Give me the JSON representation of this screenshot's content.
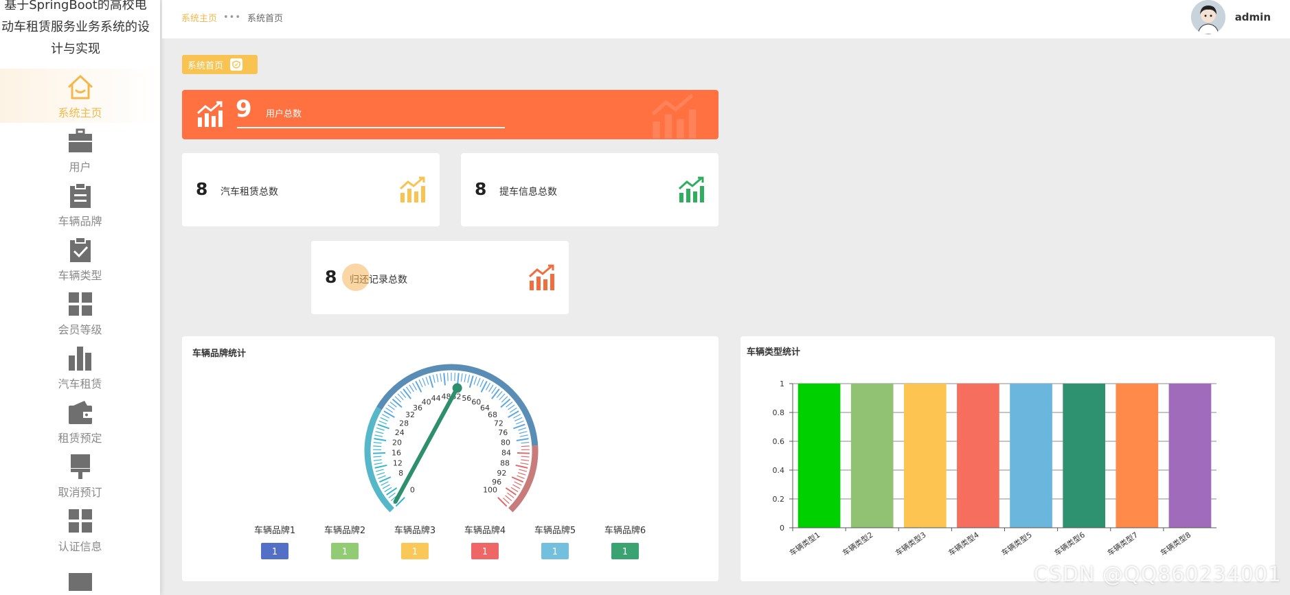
{
  "app": {
    "title": "基于SpringBoot的高校电动车租赁服务业务系统的设计与实现"
  },
  "sidebar": {
    "items": [
      {
        "label": "系统主页",
        "icon": "home-icon",
        "active": true
      },
      {
        "label": "用户",
        "icon": "briefcase-icon"
      },
      {
        "label": "车辆品牌",
        "icon": "clipboard-icon"
      },
      {
        "label": "车辆类型",
        "icon": "clipboard-check-icon"
      },
      {
        "label": "会员等级",
        "icon": "grid-icon"
      },
      {
        "label": "汽车租赁",
        "icon": "bar-chart-icon"
      },
      {
        "label": "租赁预定",
        "icon": "wallet-icon"
      },
      {
        "label": "取消预订",
        "icon": "brush-icon"
      },
      {
        "label": "认证信息",
        "icon": "grid-icon"
      }
    ]
  },
  "breadcrumb": {
    "home": "系统主页",
    "separator": "•••",
    "current": "系统首页"
  },
  "header": {
    "username": "admin"
  },
  "page_tag": {
    "label": "系统首页"
  },
  "stats": {
    "users": {
      "value": "9",
      "label": "用户总数"
    },
    "car_rental": {
      "value": "8",
      "label": "汽车租赁总数"
    },
    "pickup": {
      "value": "8",
      "label": "提车信息总数"
    },
    "return": {
      "value": "8",
      "label": "归还记录总数"
    }
  },
  "gauge_panel": {
    "title": "车辆品牌统计",
    "legend": [
      {
        "name": "车辆品牌1",
        "value": "1",
        "color": "#5470c6"
      },
      {
        "name": "车辆品牌2",
        "value": "1",
        "color": "#91cc75"
      },
      {
        "name": "车辆品牌3",
        "value": "1",
        "color": "#fac858"
      },
      {
        "name": "车辆品牌4",
        "value": "1",
        "color": "#ee6666"
      },
      {
        "name": "车辆品牌5",
        "value": "1",
        "color": "#73c0de"
      },
      {
        "name": "车辆品牌6",
        "value": "1",
        "color": "#3ba272"
      }
    ]
  },
  "bar_panel": {
    "title": "车辆类型统计"
  },
  "watermark": "CSDN @QQ860234001",
  "chart_data": [
    {
      "type": "gauge",
      "title": "车辆品牌统计",
      "min": 0,
      "max": 100,
      "tick_labels": [
        "0",
        "4",
        "8",
        "12",
        "16",
        "20",
        "24",
        "28",
        "32",
        "36",
        "40",
        "44",
        "48",
        "52",
        "56",
        "60",
        "64",
        "68",
        "72",
        "76",
        "80",
        "84",
        "88",
        "92",
        "96",
        "100"
      ],
      "value": 52
    },
    {
      "type": "bar",
      "title": "车辆类型统计",
      "categories": [
        "车辆类型1",
        "车辆类型2",
        "车辆类型3",
        "车辆类型4",
        "车辆类型5",
        "车辆类型6",
        "车辆类型7",
        "车辆类型8"
      ],
      "values": [
        1,
        1,
        1,
        1,
        1,
        1,
        1,
        1
      ],
      "colors": [
        "#00d000",
        "#91c172",
        "#fdc451",
        "#f66f5e",
        "#6bb6dc",
        "#2e9170",
        "#ff8a4a",
        "#9f6bba"
      ],
      "ylim": [
        0,
        1
      ],
      "yticks": [
        "0",
        "0.2",
        "0.4",
        "0.6",
        "0.8",
        "1"
      ],
      "grid": true
    }
  ]
}
